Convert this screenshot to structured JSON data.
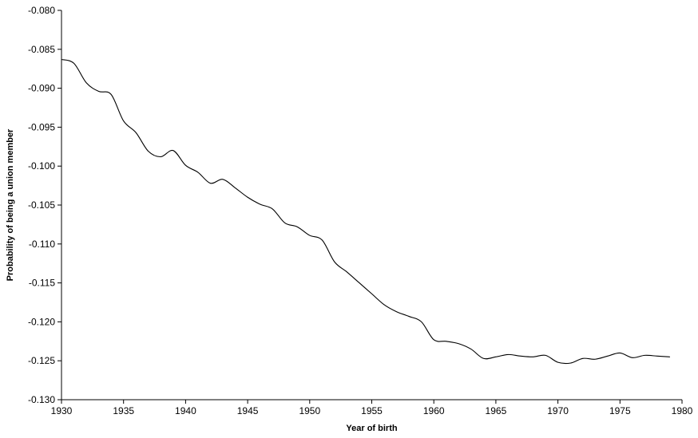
{
  "chart_data": {
    "type": "line",
    "title": "",
    "xlabel": "Year of birth",
    "ylabel": "Probability of being a union member",
    "xlim": [
      1930,
      1980
    ],
    "ylim": [
      -0.13,
      -0.08
    ],
    "x_ticks": [
      1930,
      1935,
      1940,
      1945,
      1950,
      1955,
      1960,
      1965,
      1970,
      1975,
      1980
    ],
    "x_tick_labels": [
      "1930",
      "1935",
      "1940",
      "1945",
      "1950",
      "1955",
      "1960",
      "1965",
      "1970",
      "1975",
      "1980"
    ],
    "y_ticks": [
      -0.08,
      -0.085,
      -0.09,
      -0.095,
      -0.1,
      -0.105,
      -0.11,
      -0.115,
      -0.12,
      -0.125,
      -0.13
    ],
    "y_tick_labels": [
      "-0.080",
      "-0.085",
      "-0.090",
      "-0.095",
      "-0.100",
      "-0.105",
      "-0.110",
      "-0.115",
      "-0.120",
      "-0.125",
      "-0.130"
    ],
    "grid": false,
    "legend": "none",
    "series": [
      {
        "color": "#000000",
        "x": [
          1930,
          1931,
          1932,
          1933,
          1934,
          1935,
          1936,
          1937,
          1938,
          1939,
          1940,
          1941,
          1942,
          1943,
          1944,
          1945,
          1946,
          1947,
          1948,
          1949,
          1950,
          1951,
          1952,
          1953,
          1954,
          1955,
          1956,
          1957,
          1958,
          1959,
          1960,
          1961,
          1962,
          1963,
          1964,
          1965,
          1966,
          1967,
          1968,
          1969,
          1970,
          1971,
          1972,
          1973,
          1974,
          1975,
          1976,
          1977,
          1978,
          1979
        ],
        "y": [
          -0.0863,
          -0.0868,
          -0.0893,
          -0.0904,
          -0.0908,
          -0.0942,
          -0.0957,
          -0.0981,
          -0.0988,
          -0.098,
          -0.0999,
          -0.1008,
          -0.1022,
          -0.1017,
          -0.1028,
          -0.104,
          -0.1049,
          -0.1055,
          -0.1073,
          -0.1078,
          -0.1089,
          -0.1095,
          -0.1123,
          -0.1136,
          -0.115,
          -0.1164,
          -0.1178,
          -0.1187,
          -0.1193,
          -0.12,
          -0.1223,
          -0.1225,
          -0.1228,
          -0.1235,
          -0.1247,
          -0.1245,
          -0.1242,
          -0.1244,
          -0.1245,
          -0.1243,
          -0.1252,
          -0.1253,
          -0.1247,
          -0.1248,
          -0.1244,
          -0.124,
          -0.1246,
          -0.1243,
          -0.1244,
          -0.1245
        ]
      }
    ]
  }
}
